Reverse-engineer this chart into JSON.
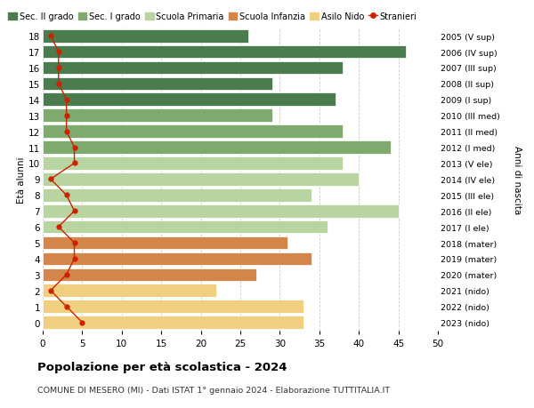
{
  "ages": [
    18,
    17,
    16,
    15,
    14,
    13,
    12,
    11,
    10,
    9,
    8,
    7,
    6,
    5,
    4,
    3,
    2,
    1,
    0
  ],
  "years_labels": [
    "2005 (V sup)",
    "2006 (IV sup)",
    "2007 (III sup)",
    "2008 (II sup)",
    "2009 (I sup)",
    "2010 (III med)",
    "2011 (II med)",
    "2012 (I med)",
    "2013 (V ele)",
    "2014 (IV ele)",
    "2015 (III ele)",
    "2016 (II ele)",
    "2017 (I ele)",
    "2018 (mater)",
    "2019 (mater)",
    "2020 (mater)",
    "2021 (nido)",
    "2022 (nido)",
    "2023 (nido)"
  ],
  "bar_values": [
    26,
    46,
    38,
    29,
    37,
    29,
    38,
    44,
    38,
    40,
    34,
    45,
    36,
    31,
    34,
    27,
    22,
    33,
    33
  ],
  "bar_colors": [
    "#4a7c4e",
    "#4a7c4e",
    "#4a7c4e",
    "#4a7c4e",
    "#4a7c4e",
    "#7faa6e",
    "#7faa6e",
    "#7faa6e",
    "#b8d4a0",
    "#b8d4a0",
    "#b8d4a0",
    "#b8d4a0",
    "#b8d4a0",
    "#d4854a",
    "#d4854a",
    "#d4854a",
    "#f0d080",
    "#f0d080",
    "#f0d080"
  ],
  "stranieri_values": [
    1,
    2,
    2,
    2,
    3,
    3,
    3,
    4,
    4,
    1,
    3,
    4,
    2,
    4,
    4,
    3,
    1,
    3,
    5
  ],
  "legend_labels": [
    "Sec. II grado",
    "Sec. I grado",
    "Scuola Primaria",
    "Scuola Infanzia",
    "Asilo Nido",
    "Stranieri"
  ],
  "legend_colors": [
    "#4a7c4e",
    "#7faa6e",
    "#b8d4a0",
    "#d4854a",
    "#f0d080",
    "#cc2200"
  ],
  "title": "Popolazione per età scolastica - 2024",
  "subtitle": "COMUNE DI MESERO (MI) - Dati ISTAT 1° gennaio 2024 - Elaborazione TUTTITALIA.IT",
  "ylabel_left": "Età alunni",
  "ylabel_right": "Anni di nascita",
  "xlim": [
    0,
    50
  ],
  "xticks": [
    0,
    5,
    10,
    15,
    20,
    25,
    30,
    35,
    40,
    45,
    50
  ],
  "background_color": "#ffffff",
  "grid_color": "#cccccc",
  "bar_height": 0.82
}
